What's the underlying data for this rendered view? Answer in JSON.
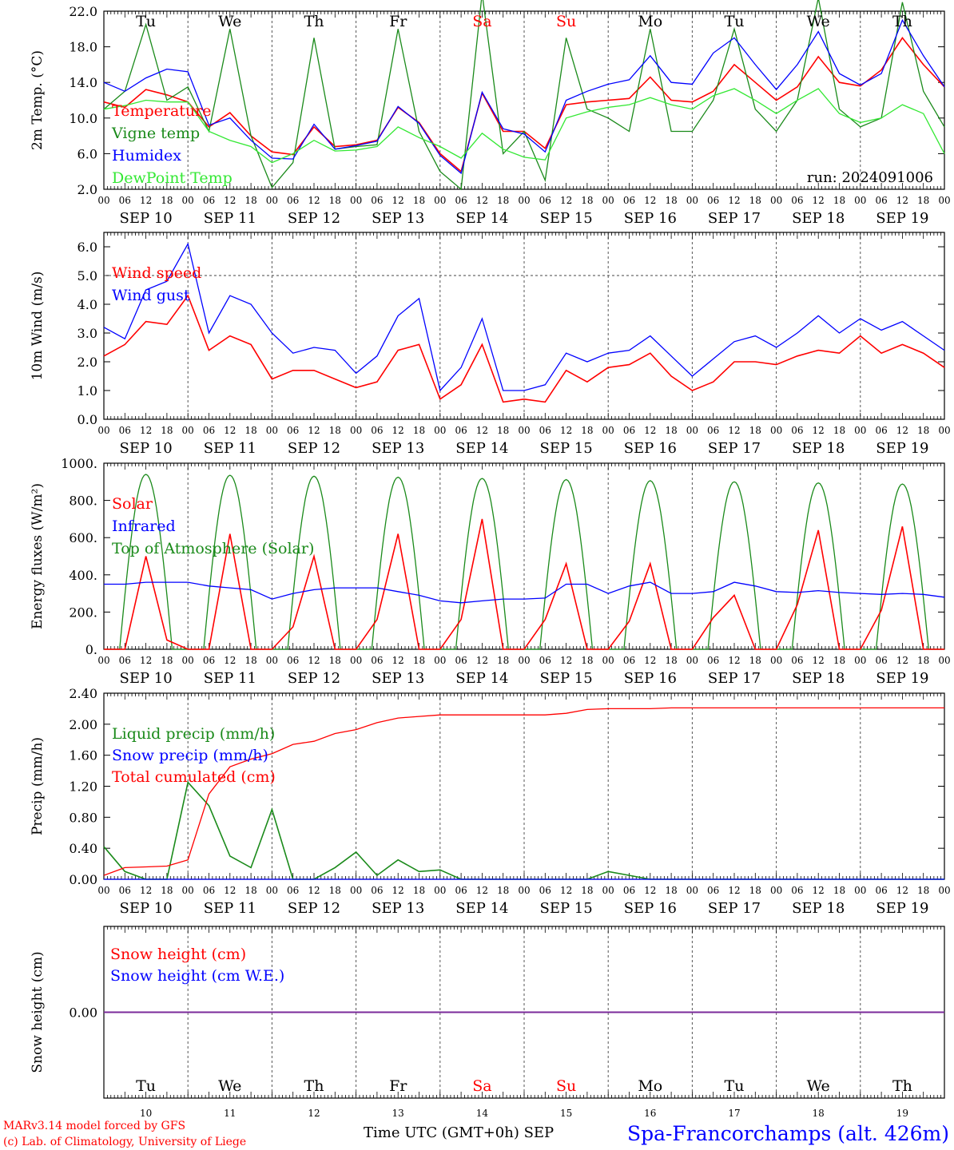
{
  "meta": {
    "run_label": "run: 2024091006",
    "model_line1": "MARv3.14 model forced by GFS",
    "model_line2": "(c) Lab. of Climatology, University of Liege",
    "x_axis_title": "Time UTC (GMT+0h) SEP",
    "station": "Spa-Francorchamps (alt. 426m)"
  },
  "time_axis": {
    "hour_ticks": [
      "00",
      "06",
      "12",
      "18"
    ],
    "final_tick": "00",
    "dates": [
      "SEP 10",
      "SEP 11",
      "SEP 12",
      "SEP 13",
      "SEP 14",
      "SEP 15",
      "SEP 16",
      "SEP 17",
      "SEP 18",
      "SEP 19"
    ],
    "weekdays": [
      "Tu",
      "We",
      "Th",
      "Fr",
      "Sa",
      "Su",
      "Mo",
      "Tu",
      "We",
      "Th"
    ],
    "weekday_colors": [
      "#000000",
      "#000000",
      "#000000",
      "#000000",
      "#ff0000",
      "#ff0000",
      "#000000",
      "#000000",
      "#000000",
      "#000000"
    ],
    "day_numbers": [
      "10",
      "11",
      "12",
      "13",
      "14",
      "15",
      "16",
      "17",
      "18",
      "19"
    ]
  },
  "colors": {
    "red": "#ff0000",
    "green": "#1a8a1a",
    "blue": "#0000ff",
    "lightgreen": "#33e833",
    "purple": "#7a2a9a",
    "axis": "#000000"
  },
  "chart_data": [
    {
      "type": "line",
      "ylabel": "2m Temp. (°C)",
      "ylim": [
        2,
        22
      ],
      "yticks": [
        "2.0",
        "6.0",
        "10.0",
        "14.0",
        "18.0",
        "22.0"
      ],
      "ytick_values": [
        2,
        6,
        10,
        14,
        18,
        22
      ],
      "annotation": "run: 2024091006",
      "x_hours": [
        0,
        6,
        12,
        18,
        24,
        30,
        36,
        42,
        48,
        54,
        60,
        66,
        72,
        78,
        84,
        90,
        96,
        102,
        108,
        114,
        120,
        126,
        132,
        138,
        144,
        150,
        156,
        162,
        168,
        174,
        180,
        186,
        192,
        198,
        204,
        210,
        216,
        222,
        228,
        234,
        240
      ],
      "series": [
        {
          "name": "Temperature",
          "color": "#ff0000",
          "values": [
            11.8,
            11.2,
            13.2,
            12.6,
            11.8,
            9.0,
            10.6,
            8.0,
            6.2,
            5.9,
            9.0,
            6.8,
            7.0,
            7.5,
            11.2,
            9.5,
            6.0,
            4.0,
            12.8,
            8.5,
            8.5,
            6.6,
            11.5,
            11.8,
            12.0,
            12.2,
            14.6,
            12.0,
            11.8,
            13.0,
            16.0,
            14.0,
            12.0,
            13.5,
            16.9,
            14.0,
            13.6,
            15.4,
            19.0,
            16.0,
            13.5
          ]
        },
        {
          "name": "Vigne temp",
          "color": "#1a8a1a",
          "values": [
            11.0,
            13.0,
            20.5,
            12.0,
            13.5,
            8.5,
            20.0,
            8.0,
            2.2,
            5.0,
            19.0,
            6.5,
            6.8,
            7.0,
            20.0,
            8.5,
            4.0,
            2.0,
            24.0,
            6.0,
            8.5,
            3.0,
            19.0,
            11.0,
            10.0,
            8.5,
            20.0,
            8.5,
            8.5,
            12.0,
            20.0,
            11.0,
            8.5,
            12.0,
            23.5,
            11.0,
            9.0,
            10.0,
            23.0,
            13.0,
            9.0
          ]
        },
        {
          "name": "Humidex",
          "color": "#0000ff",
          "values": [
            14.0,
            13.0,
            14.5,
            15.5,
            15.2,
            9.2,
            10.0,
            7.5,
            5.5,
            5.4,
            9.3,
            6.5,
            6.9,
            7.4,
            11.3,
            9.4,
            5.8,
            3.8,
            12.9,
            8.8,
            8.2,
            6.2,
            12.0,
            13.0,
            13.8,
            14.3,
            17.0,
            14.0,
            13.8,
            17.3,
            19.0,
            16.0,
            13.2,
            16.0,
            19.7,
            15.0,
            13.7,
            15.0,
            21.0,
            17.0,
            13.5
          ]
        },
        {
          "name": "DewPoint Temp",
          "color": "#33e833",
          "values": [
            11.0,
            11.4,
            12.0,
            11.8,
            11.8,
            8.5,
            7.5,
            6.8,
            5.0,
            6.0,
            7.5,
            6.3,
            6.4,
            6.8,
            9.0,
            7.8,
            6.8,
            5.5,
            8.3,
            6.5,
            5.6,
            5.3,
            10.0,
            10.7,
            11.2,
            11.5,
            12.3,
            11.5,
            11.0,
            12.5,
            13.3,
            12.0,
            10.5,
            12.0,
            13.3,
            10.5,
            9.5,
            10.0,
            11.5,
            10.5,
            6.0
          ]
        }
      ]
    },
    {
      "type": "line",
      "ylabel": "10m Wind (m/s)",
      "ylim": [
        0,
        6.5
      ],
      "yticks": [
        "0.0",
        "1.0",
        "2.0",
        "3.0",
        "4.0",
        "5.0",
        "6.0"
      ],
      "ytick_values": [
        0,
        1,
        2,
        3,
        4,
        5,
        6
      ],
      "reference_line": 5.0,
      "x_hours": [
        0,
        6,
        12,
        18,
        24,
        30,
        36,
        42,
        48,
        54,
        60,
        66,
        72,
        78,
        84,
        90,
        96,
        102,
        108,
        114,
        120,
        126,
        132,
        138,
        144,
        150,
        156,
        162,
        168,
        174,
        180,
        186,
        192,
        198,
        204,
        210,
        216,
        222,
        228,
        234,
        240
      ],
      "series": [
        {
          "name": "Wind speed",
          "color": "#ff0000",
          "values": [
            2.2,
            2.6,
            3.4,
            3.3,
            4.3,
            2.4,
            2.9,
            2.6,
            1.4,
            1.7,
            1.7,
            1.4,
            1.1,
            1.3,
            2.4,
            2.6,
            0.7,
            1.2,
            2.6,
            0.6,
            0.7,
            0.6,
            1.7,
            1.3,
            1.8,
            1.9,
            2.3,
            1.5,
            1.0,
            1.3,
            2.0,
            2.0,
            1.9,
            2.2,
            2.4,
            2.3,
            2.9,
            2.3,
            2.6,
            2.3,
            1.8
          ]
        },
        {
          "name": "Wind gust",
          "color": "#0000ff",
          "values": [
            3.2,
            2.8,
            4.5,
            4.8,
            6.1,
            3.0,
            4.3,
            4.0,
            3.0,
            2.3,
            2.5,
            2.4,
            1.6,
            2.2,
            3.6,
            4.2,
            1.0,
            1.8,
            3.5,
            1.0,
            1.0,
            1.2,
            2.3,
            2.0,
            2.3,
            2.4,
            2.9,
            2.2,
            1.5,
            2.1,
            2.7,
            2.9,
            2.5,
            3.0,
            3.6,
            3.0,
            3.5,
            3.1,
            3.4,
            2.9,
            2.4
          ]
        }
      ]
    },
    {
      "type": "line",
      "ylabel": "Energy fluxes (W/m²)",
      "ylim": [
        0,
        1000
      ],
      "yticks": [
        "0.",
        "200.",
        "400.",
        "600.",
        "800.",
        "1000."
      ],
      "ytick_values": [
        0,
        200,
        400,
        600,
        800,
        1000
      ],
      "toa_peaks": [
        940,
        935,
        930,
        925,
        918,
        912,
        906,
        900,
        894,
        888
      ],
      "x_hours": [
        0,
        6,
        12,
        18,
        24,
        30,
        36,
        42,
        48,
        54,
        60,
        66,
        72,
        78,
        84,
        90,
        96,
        102,
        108,
        114,
        120,
        126,
        132,
        138,
        144,
        150,
        156,
        162,
        168,
        174,
        180,
        186,
        192,
        198,
        204,
        210,
        216,
        222,
        228,
        234,
        240
      ],
      "series": [
        {
          "name": "Solar",
          "color": "#ff0000",
          "values": [
            0,
            0,
            500,
            50,
            0,
            0,
            620,
            0,
            0,
            120,
            500,
            0,
            0,
            160,
            620,
            0,
            0,
            160,
            700,
            0,
            0,
            160,
            460,
            0,
            0,
            150,
            460,
            0,
            0,
            170,
            290,
            0,
            0,
            240,
            640,
            0,
            0,
            210,
            660,
            0,
            0
          ]
        },
        {
          "name": "Infrared",
          "color": "#0000ff",
          "values": [
            350,
            350,
            360,
            360,
            360,
            340,
            330,
            320,
            270,
            300,
            320,
            330,
            330,
            330,
            310,
            290,
            260,
            250,
            260,
            270,
            270,
            275,
            350,
            350,
            300,
            340,
            360,
            300,
            300,
            310,
            360,
            340,
            310,
            305,
            315,
            305,
            300,
            295,
            300,
            295,
            280
          ]
        },
        {
          "name": "Top of Atmosphere (Solar)",
          "color": "#1a8a1a"
        }
      ]
    },
    {
      "type": "line",
      "ylabel": "Precip (mm/h)",
      "ylim": [
        0,
        2.4
      ],
      "yticks": [
        "0.00",
        "0.40",
        "0.80",
        "1.20",
        "1.60",
        "2.00",
        "2.40"
      ],
      "ytick_values": [
        0,
        0.4,
        0.8,
        1.2,
        1.6,
        2.0,
        2.4
      ],
      "x_hours": [
        0,
        6,
        12,
        18,
        24,
        30,
        36,
        42,
        48,
        54,
        60,
        66,
        72,
        78,
        84,
        90,
        96,
        102,
        108,
        114,
        120,
        126,
        132,
        138,
        144,
        150,
        156,
        162,
        168,
        174,
        180,
        186,
        192,
        198,
        204,
        210,
        216,
        222,
        228,
        234,
        240
      ],
      "series": [
        {
          "name": "Liquid precip (mm/h)",
          "color": "#1a8a1a",
          "values": [
            0.42,
            0.1,
            0,
            0,
            1.25,
            0.95,
            0.3,
            0.15,
            0.9,
            0,
            0,
            0.15,
            0.35,
            0.05,
            0.25,
            0.1,
            0.12,
            0,
            0,
            0,
            0,
            0,
            0,
            0,
            0.1,
            0.05,
            0,
            0,
            0,
            0,
            0,
            0,
            0,
            0,
            0,
            0,
            0,
            0,
            0,
            0,
            0
          ]
        },
        {
          "name": "Snow precip (mm/h)",
          "color": "#0000ff",
          "values": [
            0,
            0,
            0,
            0,
            0,
            0,
            0,
            0,
            0,
            0,
            0,
            0,
            0,
            0,
            0,
            0,
            0,
            0,
            0,
            0,
            0,
            0,
            0,
            0,
            0,
            0,
            0,
            0,
            0,
            0,
            0,
            0,
            0,
            0,
            0,
            0,
            0,
            0,
            0,
            0,
            0
          ]
        },
        {
          "name": "Total cumulated (cm)",
          "color": "#ff0000",
          "values": [
            0.05,
            0.15,
            0.16,
            0.17,
            0.25,
            1.1,
            1.45,
            1.55,
            1.62,
            1.74,
            1.78,
            1.88,
            1.93,
            2.02,
            2.08,
            2.1,
            2.12,
            2.12,
            2.12,
            2.12,
            2.12,
            2.12,
            2.14,
            2.19,
            2.2,
            2.2,
            2.2,
            2.21,
            2.21,
            2.21,
            2.21,
            2.21,
            2.21,
            2.21,
            2.21,
            2.21,
            2.21,
            2.21,
            2.21,
            2.21,
            2.21
          ]
        }
      ]
    },
    {
      "type": "line",
      "ylabel": "Snow height (cm)",
      "yticks": [
        "0.00"
      ],
      "ytick_values": [
        0
      ],
      "x_hours": [
        0,
        240
      ],
      "series": [
        {
          "name": "Snow height (cm)",
          "color": "#ff0000",
          "values": [
            0,
            0
          ]
        },
        {
          "name": "Snow height (cm W.E.)",
          "color": "#0000ff",
          "values": [
            0,
            0
          ]
        }
      ]
    }
  ]
}
